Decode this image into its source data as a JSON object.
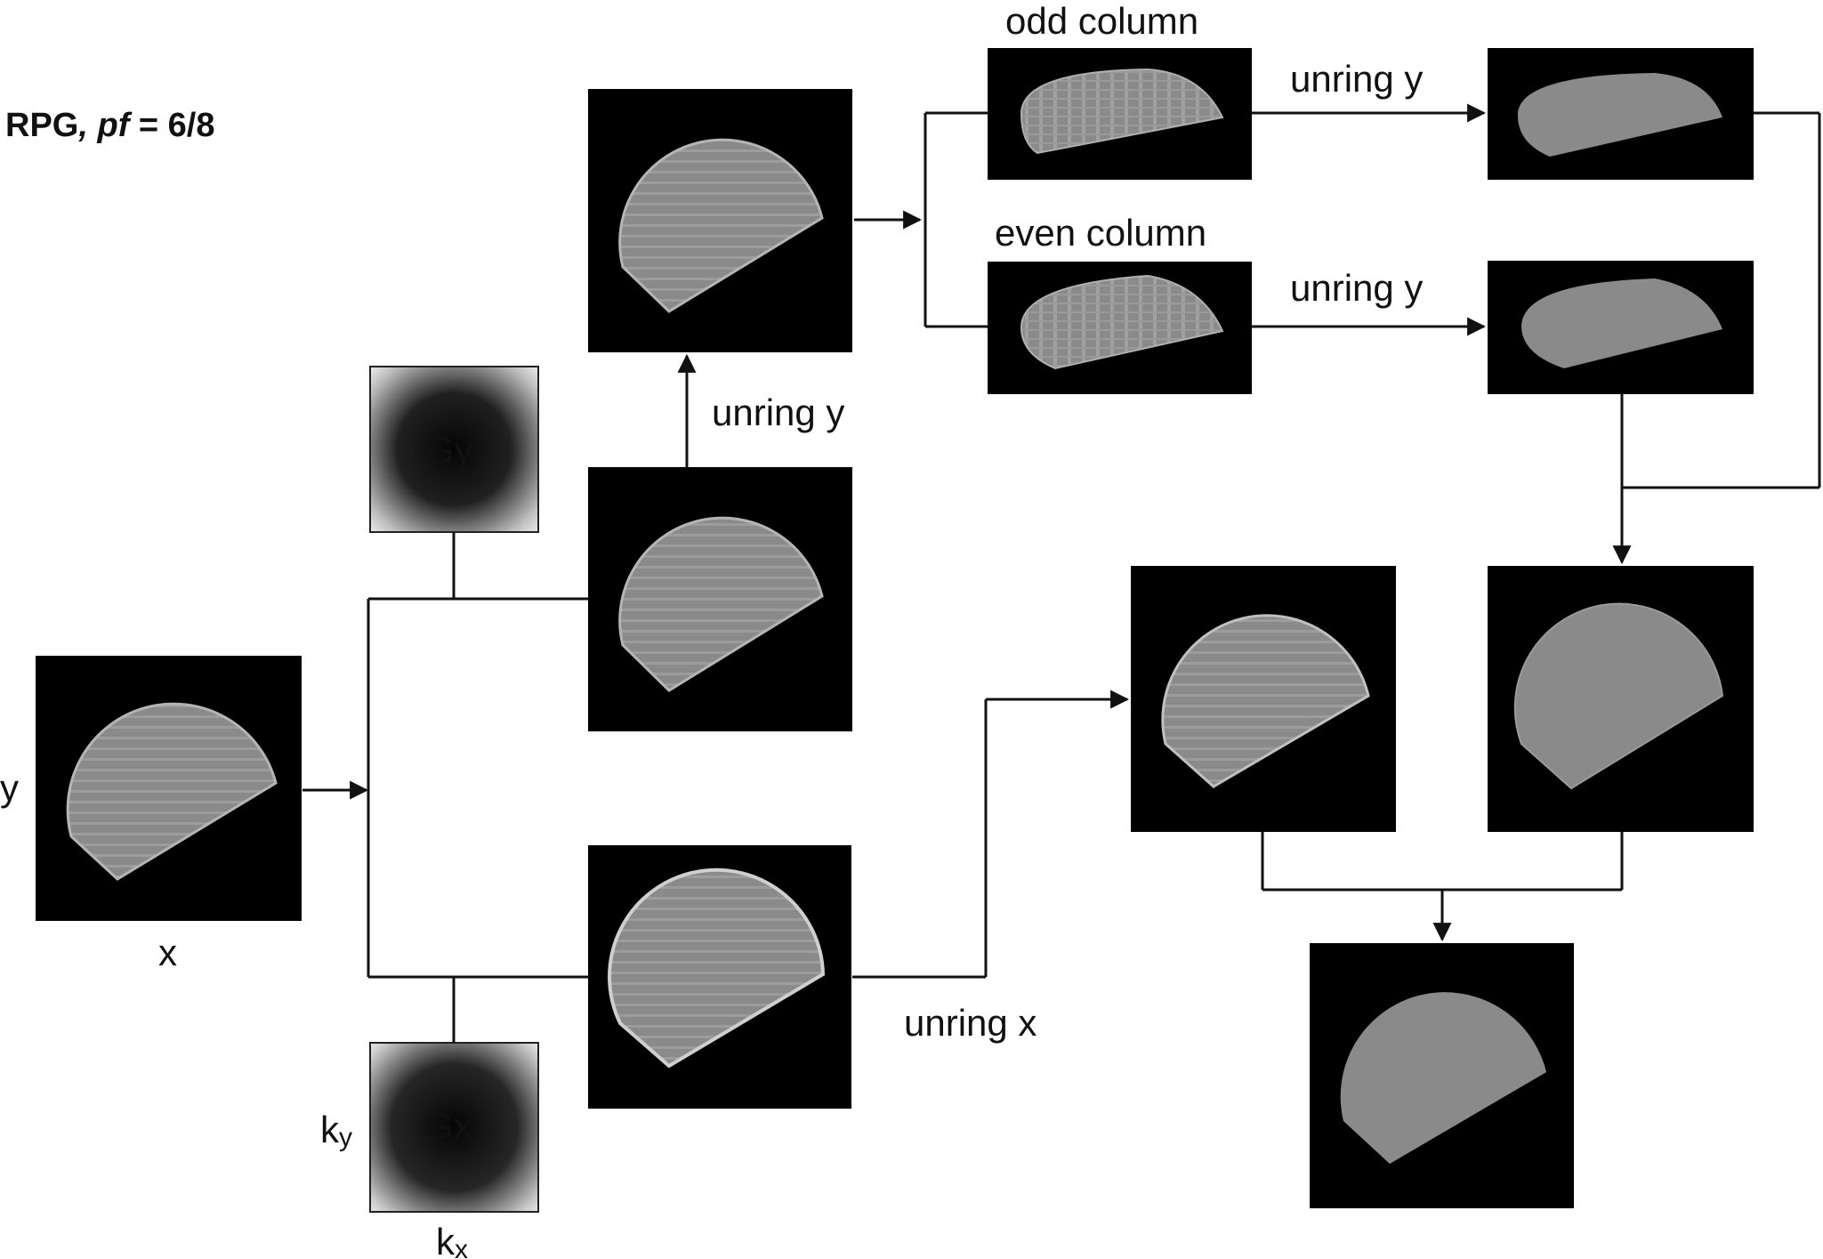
{
  "title": {
    "prefix": "RPG",
    "sep": ", ",
    "var": "pf",
    "rest": " = 6/8"
  },
  "labels": {
    "axis_y": "y",
    "axis_x": "x",
    "gy": "Gy",
    "gx": "Gx",
    "ky_k": "k",
    "ky_sub": "y",
    "kx_k": "k",
    "kx_sub": "x",
    "unring_y_up": "unring y",
    "unring_x": "unring x",
    "odd_column": "odd column",
    "even_column": "even column",
    "unring_y_odd": "unring y",
    "unring_y_even": "unring y"
  },
  "colors": {
    "panel_bg": "#000000",
    "phantom": "#8a8a8a",
    "ring": "#a8a8a8",
    "line": "#111111"
  }
}
